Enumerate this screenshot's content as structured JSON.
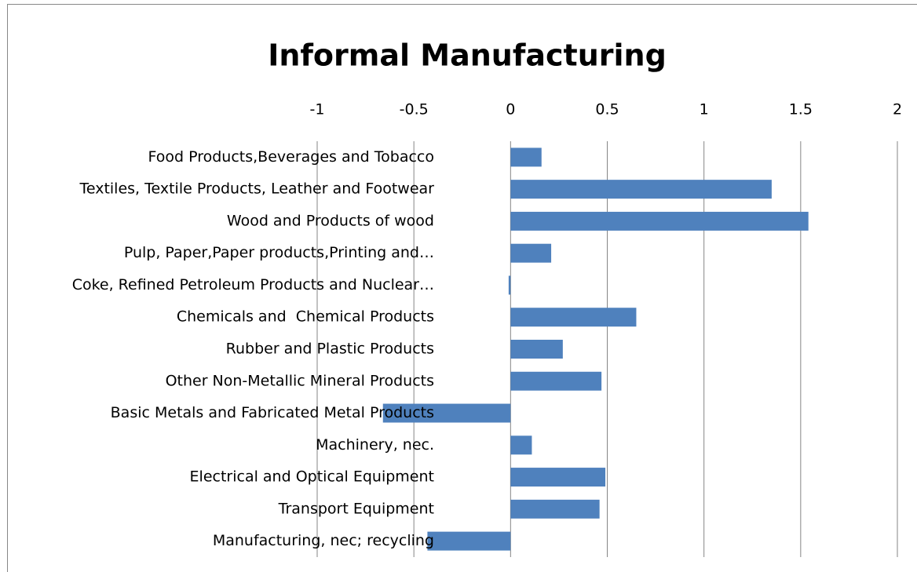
{
  "chart_data": {
    "type": "barh",
    "title": "Informal Manufacturing",
    "categories": [
      "Food Products,Beverages and Tobacco",
      "Textiles, Textile Products, Leather and Footwear",
      "Wood and Products of wood",
      "Pulp, Paper,Paper products,Printing and…",
      "Coke, Refined Petroleum Products and Nuclear…",
      "Chemicals and  Chemical Products",
      "Rubber and Plastic Products",
      "Other Non-Metallic Mineral Products",
      "Basic Metals and Fabricated Metal Products",
      "Machinery, nec.",
      "Electrical and Optical Equipment",
      "Transport Equipment",
      "Manufacturing, nec; recycling"
    ],
    "values": [
      0.16,
      1.35,
      1.54,
      0.21,
      -0.01,
      0.65,
      0.27,
      0.47,
      -0.66,
      0.11,
      0.49,
      0.46,
      -0.43
    ],
    "color": "#4f81bd",
    "xlim": [
      -1,
      2
    ],
    "xticks": [
      -1,
      -0.5,
      0,
      0.5,
      1,
      1.5,
      2
    ],
    "grid": true
  }
}
